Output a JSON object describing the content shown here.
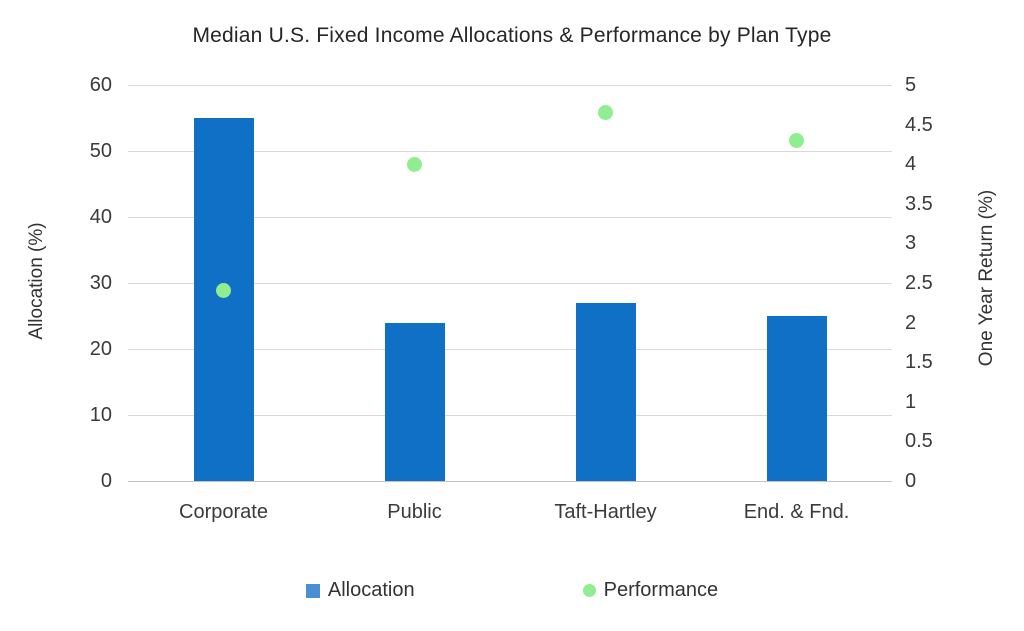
{
  "title": "Median U.S. Fixed Income Allocations & Performance by Plan Type",
  "colors": {
    "bar": "#0f70c5",
    "legend_bar_swatch": "#4a8fd3",
    "dot": "#90ee90",
    "gridline": "#d9d9d9",
    "axis_text": "#3b3b3b",
    "title_text": "#262626",
    "background": "#ffffff"
  },
  "chart_data": {
    "type": "bar",
    "subtype": "combo-bar-scatter-dual-axis",
    "title": "Median U.S. Fixed Income Allocations & Performance by Plan Type",
    "categories": [
      "Corporate",
      "Public",
      "Taft-Hartley",
      "End. & Fnd."
    ],
    "series": [
      {
        "name": "Allocation",
        "type": "bar",
        "axis": "left",
        "values": [
          55,
          24,
          27,
          25
        ]
      },
      {
        "name": "Performance",
        "type": "scatter",
        "axis": "right",
        "values": [
          2.4,
          4.0,
          4.65,
          4.3
        ]
      }
    ],
    "left_axis": {
      "label": "Allocation (%)",
      "min": 0,
      "max": 60,
      "tick_step": 10,
      "ticks": [
        60,
        50,
        40,
        30,
        20,
        10,
        0
      ]
    },
    "right_axis": {
      "label": "One Year Return (%)",
      "min": 0,
      "max": 5,
      "tick_step": 0.5,
      "ticks": [
        5,
        4.5,
        4,
        3.5,
        3,
        2.5,
        2,
        1.5,
        1,
        0.5,
        0
      ]
    },
    "grid": "horizontal gridlines at left-axis ticks only",
    "legend_position": "bottom"
  },
  "legend": {
    "items": [
      {
        "label": "Allocation",
        "shape": "square",
        "color": "#4a8fd3"
      },
      {
        "label": "Performance",
        "shape": "circle",
        "color": "#90ee90"
      }
    ]
  }
}
